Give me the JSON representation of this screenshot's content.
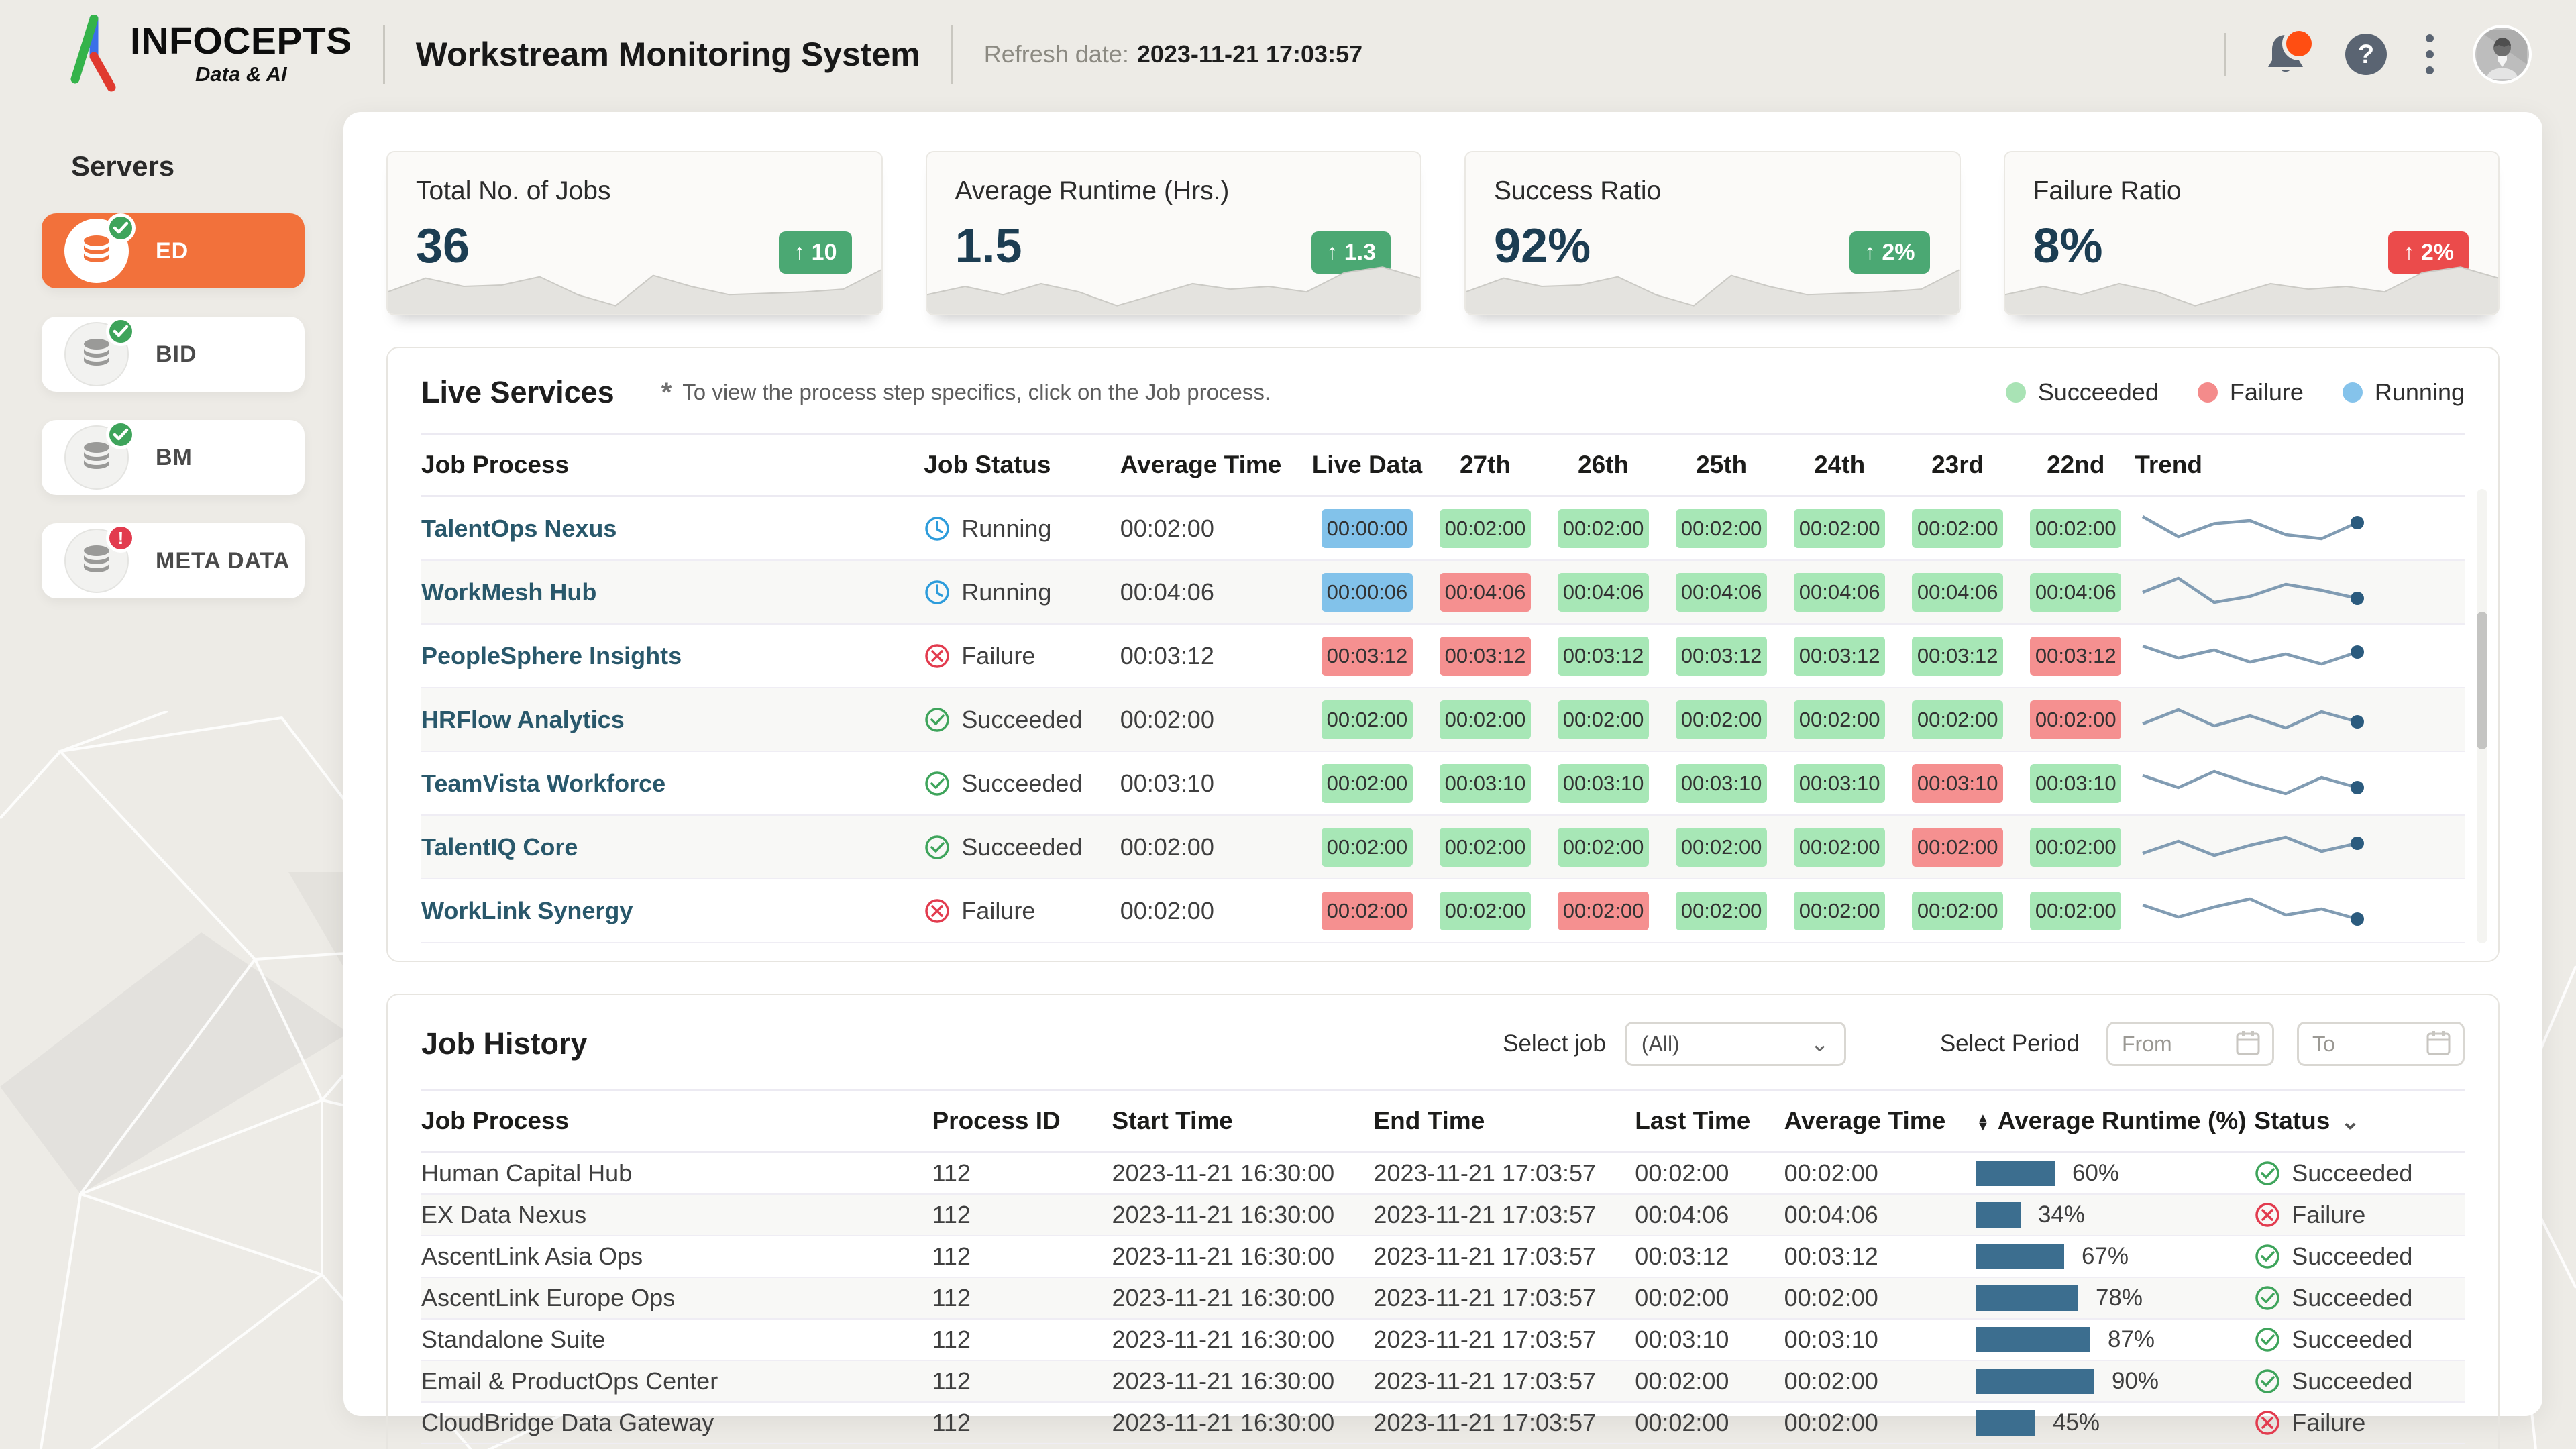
{
  "header": {
    "logo_title": "INFOCEPTS",
    "logo_subtitle": "Data & AI",
    "app_title": "Workstream Monitoring System",
    "refresh_label": "Refresh date:",
    "refresh_value": "2023-11-21 17:03:57",
    "icons": [
      "bell-icon",
      "help-icon",
      "kebab-menu-icon",
      "avatar"
    ]
  },
  "sidebar": {
    "title": "Servers",
    "items": [
      {
        "label": "ED",
        "state": "ok",
        "selected": true
      },
      {
        "label": "BID",
        "state": "ok",
        "selected": false
      },
      {
        "label": "BM",
        "state": "ok",
        "selected": false
      },
      {
        "label": "META DATA",
        "state": "alert",
        "selected": false
      }
    ]
  },
  "kpis": [
    {
      "title": "Total No. of Jobs",
      "value": "36",
      "delta": "10",
      "arrow": "↑",
      "tone": "green",
      "spark": "a"
    },
    {
      "title": "Average Runtime (Hrs.)",
      "value": "1.5",
      "delta": "1.3",
      "arrow": "↑",
      "tone": "green",
      "spark": "b"
    },
    {
      "title": "Success Ratio",
      "value": "92%",
      "delta": "2%",
      "arrow": "↑",
      "tone": "green",
      "spark": "a"
    },
    {
      "title": "Failure Ratio",
      "value": "8%",
      "delta": "2%",
      "arrow": "↑",
      "tone": "red",
      "spark": "b"
    }
  ],
  "sparks": {
    "a": [
      24,
      14,
      20,
      19,
      13,
      26,
      34,
      12,
      20,
      26,
      25,
      24,
      22,
      8
    ],
    "b": [
      26,
      20,
      26,
      18,
      24,
      34,
      26,
      18,
      22,
      20,
      24,
      10,
      6,
      14
    ]
  },
  "live_services": {
    "title": "Live Services",
    "note_star": "*",
    "note": "To view the process step specifics, click on the Job process.",
    "legend": [
      {
        "label": "Succeeded",
        "color": "#A9E3B5"
      },
      {
        "label": "Failure",
        "color": "#F48B8B"
      },
      {
        "label": "Running",
        "color": "#85C3EB"
      }
    ],
    "columns": [
      "Job Process",
      "Job Status",
      "Average Time",
      "Live Data",
      "27th",
      "26th",
      "25th",
      "24th",
      "23rd",
      "22nd",
      "Trend"
    ],
    "rows": [
      {
        "name": "TalentOps Nexus",
        "status": "Running",
        "avg": "00:02:00",
        "cells": [
          {
            "t": "00:00:00",
            "c": "b"
          },
          {
            "t": "00:02:00",
            "c": "g"
          },
          {
            "t": "00:02:00",
            "c": "g"
          },
          {
            "t": "00:02:00",
            "c": "g"
          },
          {
            "t": "00:02:00",
            "c": "g"
          },
          {
            "t": "00:02:00",
            "c": "g"
          },
          {
            "t": "00:02:00",
            "c": "g"
          }
        ],
        "trend": [
          8,
          28,
          15,
          12,
          26,
          30,
          14
        ]
      },
      {
        "name": "WorkMesh Hub",
        "status": "Running",
        "avg": "00:04:06",
        "cells": [
          {
            "t": "00:00:06",
            "c": "b"
          },
          {
            "t": "00:04:06",
            "c": "r"
          },
          {
            "t": "00:04:06",
            "c": "g"
          },
          {
            "t": "00:04:06",
            "c": "g"
          },
          {
            "t": "00:04:06",
            "c": "g"
          },
          {
            "t": "00:04:06",
            "c": "g"
          },
          {
            "t": "00:04:06",
            "c": "g"
          }
        ],
        "trend": [
          20,
          6,
          30,
          24,
          12,
          18,
          26
        ]
      },
      {
        "name": "PeopleSphere Insights",
        "status": "Failure",
        "avg": "00:03:12",
        "cells": [
          {
            "t": "00:03:12",
            "c": "r"
          },
          {
            "t": "00:03:12",
            "c": "r"
          },
          {
            "t": "00:03:12",
            "c": "g"
          },
          {
            "t": "00:03:12",
            "c": "g"
          },
          {
            "t": "00:03:12",
            "c": "g"
          },
          {
            "t": "00:03:12",
            "c": "g"
          },
          {
            "t": "00:03:12",
            "c": "r"
          }
        ],
        "trend": [
          10,
          22,
          14,
          26,
          18,
          28,
          16
        ]
      },
      {
        "name": "HRFlow Analytics",
        "status": "Succeeded",
        "avg": "00:02:00",
        "cells": [
          {
            "t": "00:02:00",
            "c": "g"
          },
          {
            "t": "00:02:00",
            "c": "g"
          },
          {
            "t": "00:02:00",
            "c": "g"
          },
          {
            "t": "00:02:00",
            "c": "g"
          },
          {
            "t": "00:02:00",
            "c": "g"
          },
          {
            "t": "00:02:00",
            "c": "g"
          },
          {
            "t": "00:02:00",
            "c": "r"
          }
        ],
        "trend": [
          24,
          10,
          26,
          16,
          28,
          12,
          22
        ]
      },
      {
        "name": "TeamVista Workforce",
        "status": "Succeeded",
        "avg": "00:03:10",
        "cells": [
          {
            "t": "00:02:00",
            "c": "g"
          },
          {
            "t": "00:03:10",
            "c": "g"
          },
          {
            "t": "00:03:10",
            "c": "g"
          },
          {
            "t": "00:03:10",
            "c": "g"
          },
          {
            "t": "00:03:10",
            "c": "g"
          },
          {
            "t": "00:03:10",
            "c": "r"
          },
          {
            "t": "00:03:10",
            "c": "g"
          }
        ],
        "trend": [
          12,
          24,
          8,
          20,
          30,
          14,
          24
        ]
      },
      {
        "name": "TalentIQ Core",
        "status": "Succeeded",
        "avg": "00:02:00",
        "cells": [
          {
            "t": "00:02:00",
            "c": "g"
          },
          {
            "t": "00:02:00",
            "c": "g"
          },
          {
            "t": "00:02:00",
            "c": "g"
          },
          {
            "t": "00:02:00",
            "c": "g"
          },
          {
            "t": "00:02:00",
            "c": "g"
          },
          {
            "t": "00:02:00",
            "c": "r"
          },
          {
            "t": "00:02:00",
            "c": "g"
          }
        ],
        "trend": [
          26,
          14,
          28,
          18,
          10,
          24,
          16
        ]
      },
      {
        "name": "WorkLink Synergy",
        "status": "Failure",
        "avg": "00:02:00",
        "cells": [
          {
            "t": "00:02:00",
            "c": "r"
          },
          {
            "t": "00:02:00",
            "c": "g"
          },
          {
            "t": "00:02:00",
            "c": "r"
          },
          {
            "t": "00:02:00",
            "c": "g"
          },
          {
            "t": "00:02:00",
            "c": "g"
          },
          {
            "t": "00:02:00",
            "c": "g"
          },
          {
            "t": "00:02:00",
            "c": "g"
          }
        ],
        "trend": [
          14,
          26,
          16,
          8,
          24,
          18,
          28
        ]
      }
    ]
  },
  "job_history": {
    "title": "Job History",
    "select_job_label": "Select job",
    "select_job_value": "(All)",
    "select_period_label": "Select Period",
    "from_placeholder": "From",
    "to_placeholder": "To",
    "columns": [
      "Job Process",
      "Process ID",
      "Start Time",
      "End Time",
      "Last Time",
      "Average Time",
      "Average Runtime (%)",
      "Status"
    ],
    "rows": [
      {
        "name": "Human Capital Hub",
        "pid": "112",
        "start": "2023-11-21 16:30:00",
        "end": "2023-11-21 17:03:57",
        "last": "00:02:00",
        "avg": "00:02:00",
        "pct": 60,
        "pct_label": "60%",
        "status": "Succeeded"
      },
      {
        "name": "EX Data Nexus",
        "pid": "112",
        "start": "2023-11-21 16:30:00",
        "end": "2023-11-21 17:03:57",
        "last": "00:04:06",
        "avg": "00:04:06",
        "pct": 34,
        "pct_label": "34%",
        "status": "Failure"
      },
      {
        "name": "AscentLink Asia Ops",
        "pid": "112",
        "start": "2023-11-21 16:30:00",
        "end": "2023-11-21 17:03:57",
        "last": "00:03:12",
        "avg": "00:03:12",
        "pct": 67,
        "pct_label": "67%",
        "status": "Succeeded"
      },
      {
        "name": "AscentLink Europe Ops",
        "pid": "112",
        "start": "2023-11-21 16:30:00",
        "end": "2023-11-21 17:03:57",
        "last": "00:02:00",
        "avg": "00:02:00",
        "pct": 78,
        "pct_label": "78%",
        "status": "Succeeded"
      },
      {
        "name": "Standalone Suite",
        "pid": "112",
        "start": "2023-11-21 16:30:00",
        "end": "2023-11-21 17:03:57",
        "last": "00:03:10",
        "avg": "00:03:10",
        "pct": 87,
        "pct_label": "87%",
        "status": "Succeeded"
      },
      {
        "name": "Email & ProductOps Center",
        "pid": "112",
        "start": "2023-11-21 16:30:00",
        "end": "2023-11-21 17:03:57",
        "last": "00:02:00",
        "avg": "00:02:00",
        "pct": 90,
        "pct_label": "90%",
        "status": "Succeeded"
      },
      {
        "name": "CloudBridge Data Gateway",
        "pid": "112",
        "start": "2023-11-21 16:30:00",
        "end": "2023-11-21 17:03:57",
        "last": "00:02:00",
        "avg": "00:02:00",
        "pct": 45,
        "pct_label": "45%",
        "status": "Failure"
      }
    ]
  },
  "colors": {
    "accent_orange": "#F2713B",
    "navy": "#1C3D52",
    "green_badge": "#4BA873",
    "red_badge": "#EB4B4B",
    "chip_green": "#A7E7B6",
    "chip_red": "#F59090",
    "chip_blue": "#82C2EA",
    "bar_steel": "#3C6E8F",
    "trend_line": "#819CB3",
    "trend_dot": "#2B5B7E",
    "ok_icon": "#3EA45B",
    "fail_icon": "#E23B4E",
    "running_icon": "#2D9CDB"
  }
}
